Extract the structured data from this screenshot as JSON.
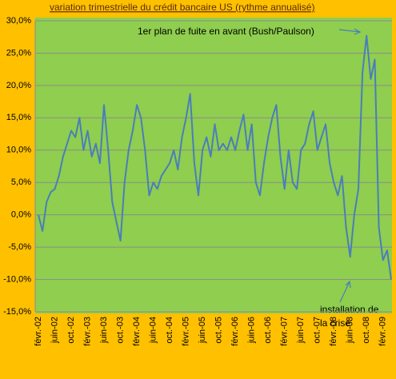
{
  "chart_data": {
    "type": "line",
    "title": "variation trimestrielle du crédit bancaire US (rythme annualisé)",
    "categories": [
      "févr.-02",
      null,
      null,
      null,
      "juin-02",
      null,
      null,
      null,
      "oct.-02",
      null,
      null,
      null,
      "févr.-03",
      null,
      null,
      null,
      "juin-03",
      null,
      null,
      null,
      "oct.-03",
      null,
      null,
      null,
      "févr.-04",
      null,
      null,
      null,
      "juin-04",
      null,
      null,
      null,
      "oct.-04",
      null,
      null,
      null,
      "févr.-05",
      null,
      null,
      null,
      "juin-05",
      null,
      null,
      null,
      "oct.-05",
      null,
      null,
      null,
      "févr.-06",
      null,
      null,
      null,
      "juin-06",
      null,
      null,
      null,
      "oct.-06",
      null,
      null,
      null,
      "févr.-07",
      null,
      null,
      null,
      "juin-07",
      null,
      null,
      null,
      "oct.-07",
      null,
      null,
      null,
      "févr.-08",
      null,
      null,
      null,
      "juin-08",
      null,
      null,
      null,
      "oct.-08",
      null,
      null,
      null,
      "févr.-09",
      null,
      null
    ],
    "values": [
      0,
      -2.5,
      2,
      3.5,
      4,
      6,
      9,
      11,
      13,
      12,
      15,
      10,
      13,
      9,
      11,
      8,
      17,
      10,
      2,
      -1,
      -4,
      5,
      10,
      13,
      17,
      15,
      10,
      3,
      5,
      4,
      6,
      7,
      8,
      10,
      7,
      12,
      15,
      18.7,
      8,
      3,
      10,
      12,
      9,
      14,
      10,
      11,
      10,
      12,
      10,
      13,
      15.5,
      10,
      14,
      5,
      3,
      8,
      12,
      15,
      17,
      9,
      4,
      10,
      5,
      4,
      10,
      11,
      14,
      16,
      10,
      12,
      14,
      8,
      5,
      3,
      6,
      -2,
      -6.5,
      0,
      4,
      22,
      27.7,
      21,
      24,
      -2,
      -7,
      -5.5,
      -10
    ],
    "color": "#4a7ebb",
    "ylim": [
      -15,
      30
    ],
    "yticks": [
      {
        "value": -15,
        "label": "-15,0%"
      },
      {
        "value": -10,
        "label": "-10,0%"
      },
      {
        "value": -5,
        "label": "-5,0%"
      },
      {
        "value": 0,
        "label": "0,0%"
      },
      {
        "value": 5,
        "label": "5,0%"
      },
      {
        "value": 10,
        "label": "10,0%"
      },
      {
        "value": 15,
        "label": "15,0%"
      },
      {
        "value": 20,
        "label": "20,0%"
      },
      {
        "value": 25,
        "label": "25,0%"
      },
      {
        "value": 30,
        "label": "30,0%"
      }
    ],
    "grid": true,
    "annotations": [
      {
        "lines": [
          "1er plan de fuite en avant (Bush/Paulson)"
        ]
      },
      {
        "lines": [
          "installation de",
          "la crise"
        ]
      }
    ]
  }
}
